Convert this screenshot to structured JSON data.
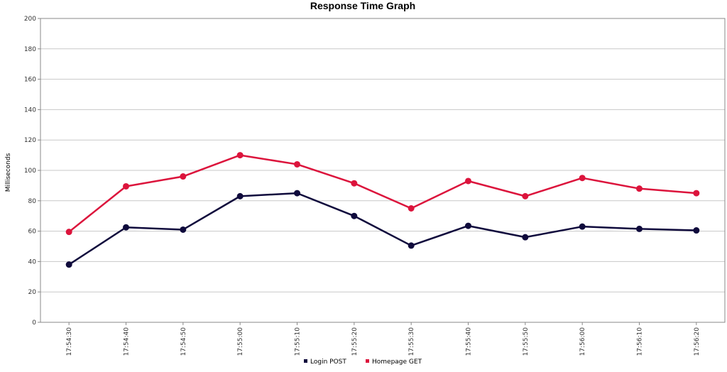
{
  "chart_data": {
    "type": "line",
    "title": "Response Time Graph",
    "xlabel": "",
    "ylabel": "Milliseconds",
    "ylim": [
      0,
      200
    ],
    "yticks": [
      0,
      20,
      40,
      60,
      80,
      100,
      120,
      140,
      160,
      180,
      200
    ],
    "grid": true,
    "legend_position": "bottom",
    "categories": [
      "17:54:30",
      "17:54:40",
      "17:54:50",
      "17:55:00",
      "17:55:10",
      "17:55:20",
      "17:55:30",
      "17:55:40",
      "17:55:50",
      "17:56:00",
      "17:56:10",
      "17:56:20"
    ],
    "series": [
      {
        "name": "Login POST",
        "color": "#0f0a3c",
        "values": [
          38,
          62.5,
          61,
          83,
          85,
          70,
          50.5,
          63.5,
          56,
          63,
          61.5,
          60.5
        ]
      },
      {
        "name": "Homepage GET",
        "color": "#dc143c",
        "values": [
          59.5,
          89.5,
          96,
          110,
          104,
          91.5,
          75,
          93,
          83,
          95,
          88,
          85
        ]
      }
    ]
  }
}
